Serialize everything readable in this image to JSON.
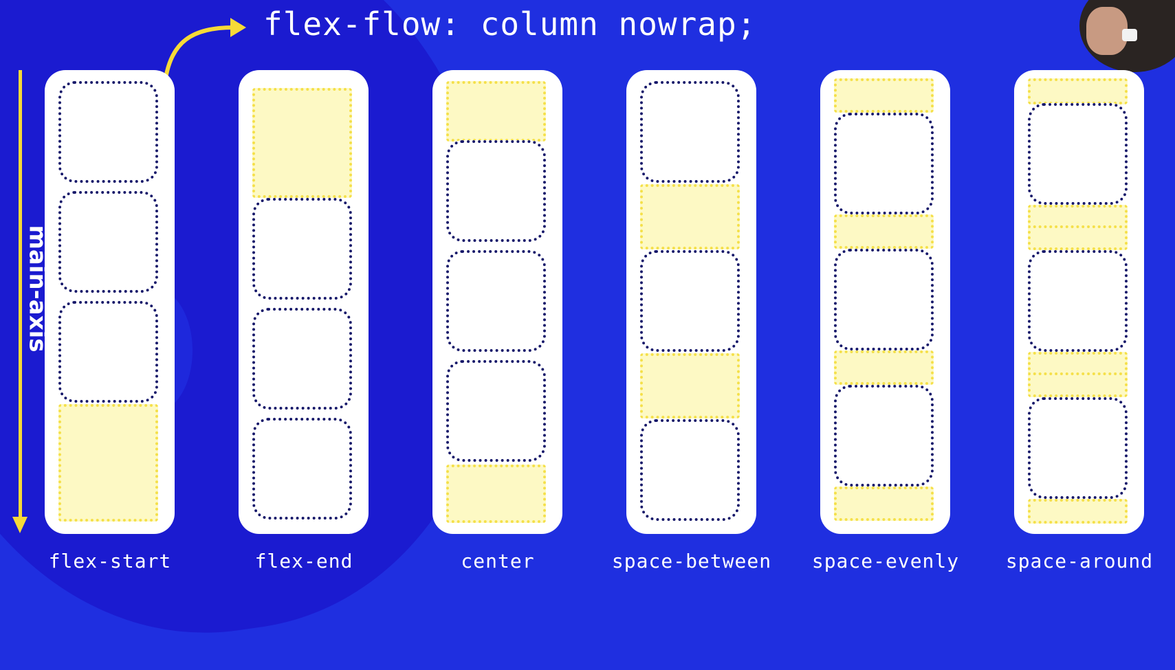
{
  "title": "flex-flow: column nowrap;",
  "axis_label": "main-axis",
  "columns": [
    {
      "label": "flex-start"
    },
    {
      "label": "flex-end"
    },
    {
      "label": "center"
    },
    {
      "label": "space-between"
    },
    {
      "label": "space-evenly"
    },
    {
      "label": "space-around"
    }
  ],
  "colors": {
    "background": "#1f2fe0",
    "accent": "#f7da37",
    "item_border": "#16186a",
    "free_space": "#fdf9c4"
  }
}
